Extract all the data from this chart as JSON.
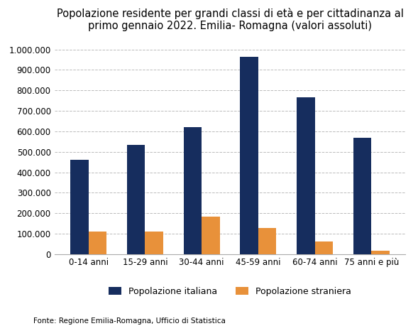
{
  "title": "Popolazione residente per grandi classi di età e per cittadinanza al\nprimo gennaio 2022. Emilia- Romagna (valori assoluti)",
  "categories": [
    "0-14 anni",
    "15-29 anni",
    "30-44 anni",
    "45-59 anni",
    "60-74 anni",
    "75 anni e più"
  ],
  "italiana": [
    460000,
    535000,
    620000,
    965000,
    765000,
    570000
  ],
  "straniera": [
    110000,
    110000,
    185000,
    130000,
    62000,
    18000
  ],
  "color_italiana": "#162d5e",
  "color_straniera": "#e8913a",
  "ylim": [
    0,
    1050000
  ],
  "yticks": [
    0,
    100000,
    200000,
    300000,
    400000,
    500000,
    600000,
    700000,
    800000,
    900000,
    1000000
  ],
  "legend_italiana": "Popolazione italiana",
  "legend_straniera": "Popolazione straniera",
  "source": "Fonte: Regione Emilia-Romagna, Ufficio di Statistica",
  "title_fontsize": 10.5,
  "tick_fontsize": 8.5,
  "legend_fontsize": 9,
  "source_fontsize": 7.5,
  "background_color": "#ffffff",
  "grid_color": "#bbbbbb"
}
